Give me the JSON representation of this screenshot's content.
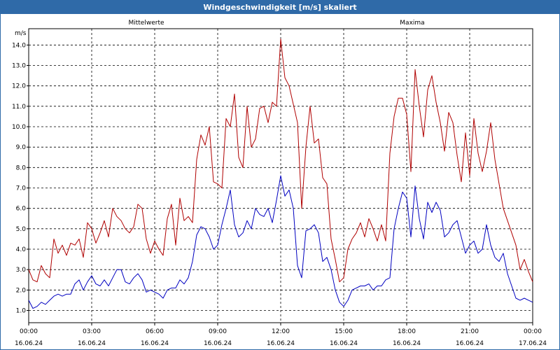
{
  "window": {
    "title": "Windgeschwindigkeit [m/s] skaliert"
  },
  "chart_data": {
    "type": "line",
    "title": "Windgeschwindigkeit [m/s] skaliert",
    "ylabel": "m/s",
    "xlabel": "",
    "ylim": [
      0.4,
      14.8
    ],
    "xlim": [
      0,
      24
    ],
    "grid": true,
    "y_ticks": [
      "1.0",
      "2.0",
      "3.0",
      "4.0",
      "5.0",
      "6.0",
      "7.0",
      "8.0",
      "9.0",
      "10.0",
      "11.0",
      "12.0",
      "13.0",
      "14.0"
    ],
    "x_ticks": [
      {
        "time": "00:00",
        "date": "16.06.24"
      },
      {
        "time": "03:00",
        "date": "16.06.24"
      },
      {
        "time": "06:00",
        "date": "16.06.24"
      },
      {
        "time": "09:00",
        "date": "16.06.24"
      },
      {
        "time": "12:00",
        "date": "16.06.24"
      },
      {
        "time": "15:00",
        "date": "16.06.24"
      },
      {
        "time": "18:00",
        "date": "16.06.24"
      },
      {
        "time": "21:00",
        "date": "16.06.24"
      },
      {
        "time": "00:00",
        "date": "17.06.24"
      }
    ],
    "legend": [
      "Mittelwerte",
      "Maxima"
    ],
    "colors": {
      "mittelwerte": "#0000c0",
      "maxima": "#b00000"
    },
    "series": [
      {
        "name": "Mittelwerte",
        "points": [
          [
            0.0,
            1.5
          ],
          [
            0.2,
            1.1
          ],
          [
            0.4,
            1.2
          ],
          [
            0.6,
            1.4
          ],
          [
            0.8,
            1.3
          ],
          [
            1.0,
            1.5
          ],
          [
            1.2,
            1.7
          ],
          [
            1.4,
            1.8
          ],
          [
            1.6,
            1.7
          ],
          [
            1.8,
            1.8
          ],
          [
            2.0,
            1.8
          ],
          [
            2.2,
            2.3
          ],
          [
            2.4,
            2.5
          ],
          [
            2.6,
            2.0
          ],
          [
            2.8,
            2.4
          ],
          [
            3.0,
            2.7
          ],
          [
            3.2,
            2.3
          ],
          [
            3.4,
            2.2
          ],
          [
            3.6,
            2.5
          ],
          [
            3.8,
            2.2
          ],
          [
            4.0,
            2.6
          ],
          [
            4.2,
            3.0
          ],
          [
            4.4,
            3.0
          ],
          [
            4.6,
            2.4
          ],
          [
            4.8,
            2.3
          ],
          [
            5.0,
            2.6
          ],
          [
            5.2,
            2.8
          ],
          [
            5.4,
            2.5
          ],
          [
            5.6,
            1.9
          ],
          [
            5.8,
            2.0
          ],
          [
            6.0,
            1.9
          ],
          [
            6.2,
            1.8
          ],
          [
            6.4,
            1.6
          ],
          [
            6.6,
            2.0
          ],
          [
            6.8,
            2.1
          ],
          [
            7.0,
            2.1
          ],
          [
            7.2,
            2.5
          ],
          [
            7.4,
            2.3
          ],
          [
            7.6,
            2.6
          ],
          [
            7.8,
            3.4
          ],
          [
            8.0,
            4.7
          ],
          [
            8.2,
            5.1
          ],
          [
            8.4,
            5.0
          ],
          [
            8.6,
            4.6
          ],
          [
            8.8,
            4.0
          ],
          [
            9.0,
            4.2
          ],
          [
            9.2,
            5.2
          ],
          [
            9.4,
            6.0
          ],
          [
            9.6,
            6.9
          ],
          [
            9.8,
            5.2
          ],
          [
            10.0,
            4.6
          ],
          [
            10.2,
            4.8
          ],
          [
            10.4,
            5.4
          ],
          [
            10.6,
            5.0
          ],
          [
            10.8,
            6.0
          ],
          [
            11.0,
            5.7
          ],
          [
            11.2,
            5.6
          ],
          [
            11.4,
            6.0
          ],
          [
            11.6,
            5.3
          ],
          [
            11.8,
            6.4
          ],
          [
            12.0,
            7.6
          ],
          [
            12.2,
            6.6
          ],
          [
            12.4,
            6.9
          ],
          [
            12.6,
            6.0
          ],
          [
            12.8,
            3.2
          ],
          [
            13.0,
            2.6
          ],
          [
            13.2,
            4.9
          ],
          [
            13.4,
            5.0
          ],
          [
            13.6,
            5.2
          ],
          [
            13.8,
            4.8
          ],
          [
            14.0,
            3.4
          ],
          [
            14.2,
            3.6
          ],
          [
            14.4,
            3.0
          ],
          [
            14.6,
            2.0
          ],
          [
            14.8,
            1.4
          ],
          [
            15.0,
            1.2
          ],
          [
            15.2,
            1.5
          ],
          [
            15.4,
            2.0
          ],
          [
            15.6,
            2.1
          ],
          [
            15.8,
            2.2
          ],
          [
            16.0,
            2.2
          ],
          [
            16.2,
            2.3
          ],
          [
            16.4,
            2.0
          ],
          [
            16.6,
            2.2
          ],
          [
            16.8,
            2.2
          ],
          [
            17.0,
            2.5
          ],
          [
            17.2,
            2.6
          ],
          [
            17.4,
            5.0
          ],
          [
            17.6,
            6.0
          ],
          [
            17.8,
            6.8
          ],
          [
            18.0,
            6.5
          ],
          [
            18.2,
            4.6
          ],
          [
            18.4,
            7.1
          ],
          [
            18.6,
            5.5
          ],
          [
            18.8,
            4.5
          ],
          [
            19.0,
            6.3
          ],
          [
            19.2,
            5.8
          ],
          [
            19.4,
            6.3
          ],
          [
            19.6,
            5.9
          ],
          [
            19.8,
            4.6
          ],
          [
            20.0,
            4.8
          ],
          [
            20.2,
            5.2
          ],
          [
            20.4,
            5.4
          ],
          [
            20.6,
            4.6
          ],
          [
            20.8,
            3.8
          ],
          [
            21.0,
            4.2
          ],
          [
            21.2,
            4.4
          ],
          [
            21.4,
            3.8
          ],
          [
            21.6,
            4.0
          ],
          [
            21.8,
            5.2
          ],
          [
            22.0,
            4.2
          ],
          [
            22.2,
            3.6
          ],
          [
            22.4,
            3.4
          ],
          [
            22.6,
            3.8
          ],
          [
            22.8,
            2.8
          ],
          [
            23.0,
            2.2
          ],
          [
            23.2,
            1.6
          ],
          [
            23.4,
            1.5
          ],
          [
            23.6,
            1.6
          ],
          [
            23.8,
            1.5
          ],
          [
            24.0,
            1.4
          ]
        ]
      },
      {
        "name": "Maxima",
        "points": [
          [
            0.0,
            3.0
          ],
          [
            0.2,
            2.5
          ],
          [
            0.4,
            2.4
          ],
          [
            0.6,
            3.2
          ],
          [
            0.8,
            2.8
          ],
          [
            1.0,
            2.6
          ],
          [
            1.2,
            4.5
          ],
          [
            1.4,
            3.8
          ],
          [
            1.6,
            4.2
          ],
          [
            1.8,
            3.7
          ],
          [
            2.0,
            4.3
          ],
          [
            2.2,
            4.2
          ],
          [
            2.4,
            4.5
          ],
          [
            2.6,
            3.6
          ],
          [
            2.8,
            5.3
          ],
          [
            3.0,
            5.0
          ],
          [
            3.2,
            4.3
          ],
          [
            3.4,
            4.8
          ],
          [
            3.6,
            5.4
          ],
          [
            3.8,
            4.6
          ],
          [
            4.0,
            6.0
          ],
          [
            4.2,
            5.6
          ],
          [
            4.4,
            5.4
          ],
          [
            4.6,
            5.0
          ],
          [
            4.8,
            4.8
          ],
          [
            5.0,
            5.1
          ],
          [
            5.2,
            6.2
          ],
          [
            5.4,
            6.0
          ],
          [
            5.6,
            4.5
          ],
          [
            5.8,
            3.8
          ],
          [
            6.0,
            4.4
          ],
          [
            6.2,
            4.0
          ],
          [
            6.4,
            3.7
          ],
          [
            6.6,
            5.5
          ],
          [
            6.8,
            6.2
          ],
          [
            7.0,
            4.2
          ],
          [
            7.2,
            6.5
          ],
          [
            7.4,
            5.4
          ],
          [
            7.6,
            5.6
          ],
          [
            7.8,
            5.3
          ],
          [
            8.0,
            8.4
          ],
          [
            8.2,
            9.6
          ],
          [
            8.4,
            9.1
          ],
          [
            8.6,
            10.0
          ],
          [
            8.8,
            7.3
          ],
          [
            9.0,
            7.2
          ],
          [
            9.2,
            7.0
          ],
          [
            9.4,
            10.4
          ],
          [
            9.6,
            10.0
          ],
          [
            9.8,
            11.6
          ],
          [
            10.0,
            8.5
          ],
          [
            10.2,
            8.0
          ],
          [
            10.4,
            11.0
          ],
          [
            10.6,
            9.0
          ],
          [
            10.8,
            9.4
          ],
          [
            11.0,
            10.9
          ],
          [
            11.2,
            11.0
          ],
          [
            11.4,
            10.2
          ],
          [
            11.6,
            11.2
          ],
          [
            11.8,
            11.0
          ],
          [
            12.0,
            14.3
          ],
          [
            12.2,
            12.4
          ],
          [
            12.4,
            12.0
          ],
          [
            12.6,
            11.1
          ],
          [
            12.8,
            10.2
          ],
          [
            13.0,
            6.0
          ],
          [
            13.2,
            9.0
          ],
          [
            13.4,
            11.0
          ],
          [
            13.6,
            9.2
          ],
          [
            13.8,
            9.4
          ],
          [
            14.0,
            7.5
          ],
          [
            14.2,
            7.2
          ],
          [
            14.4,
            4.5
          ],
          [
            14.6,
            3.5
          ],
          [
            14.8,
            2.4
          ],
          [
            15.0,
            2.6
          ],
          [
            15.2,
            4.0
          ],
          [
            15.4,
            4.5
          ],
          [
            15.6,
            4.8
          ],
          [
            15.8,
            5.3
          ],
          [
            16.0,
            4.6
          ],
          [
            16.2,
            5.5
          ],
          [
            16.4,
            5.0
          ],
          [
            16.6,
            4.4
          ],
          [
            16.8,
            5.2
          ],
          [
            17.0,
            4.4
          ],
          [
            17.2,
            8.7
          ],
          [
            17.4,
            10.5
          ],
          [
            17.6,
            11.4
          ],
          [
            17.8,
            11.4
          ],
          [
            18.0,
            10.6
          ],
          [
            18.2,
            7.8
          ],
          [
            18.4,
            12.8
          ],
          [
            18.6,
            11.0
          ],
          [
            18.8,
            9.5
          ],
          [
            19.0,
            11.8
          ],
          [
            19.2,
            12.5
          ],
          [
            19.4,
            11.2
          ],
          [
            19.6,
            10.2
          ],
          [
            19.8,
            8.8
          ],
          [
            20.0,
            10.7
          ],
          [
            20.2,
            10.2
          ],
          [
            20.4,
            8.6
          ],
          [
            20.6,
            7.3
          ],
          [
            20.8,
            9.7
          ],
          [
            21.0,
            7.6
          ],
          [
            21.2,
            10.4
          ],
          [
            21.4,
            8.7
          ],
          [
            21.6,
            7.8
          ],
          [
            21.8,
            8.8
          ],
          [
            22.0,
            10.2
          ],
          [
            22.2,
            8.4
          ],
          [
            22.4,
            7.2
          ],
          [
            22.6,
            6.0
          ],
          [
            22.8,
            5.4
          ],
          [
            23.0,
            4.8
          ],
          [
            23.2,
            4.2
          ],
          [
            23.4,
            3.0
          ],
          [
            23.6,
            3.5
          ],
          [
            23.8,
            2.9
          ],
          [
            24.0,
            2.4
          ]
        ]
      }
    ]
  }
}
